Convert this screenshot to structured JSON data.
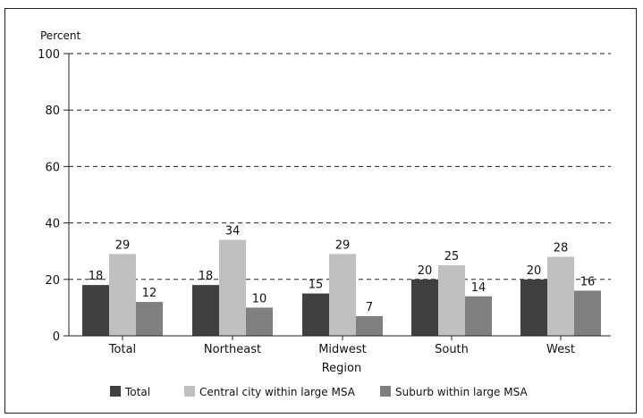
{
  "chart_data": {
    "type": "bar",
    "title": "",
    "ylabel": "Percent",
    "xlabel": "Region",
    "ylim": [
      0,
      100
    ],
    "yticks": [
      0,
      20,
      40,
      60,
      80,
      100
    ],
    "grid": "dashed horizontal",
    "categories": [
      "Total",
      "Northeast",
      "Midwest",
      "South",
      "West"
    ],
    "series": [
      {
        "name": "Total",
        "color": "#404040",
        "values": [
          18,
          18,
          15,
          20,
          20
        ]
      },
      {
        "name": "Central city within large MSA",
        "color": "#c0c0c0",
        "values": [
          29,
          34,
          29,
          25,
          28
        ]
      },
      {
        "name": "Suburb within large MSA",
        "color": "#7f7f7f",
        "values": [
          12,
          10,
          7,
          14,
          16
        ]
      }
    ],
    "legend_position": "bottom"
  }
}
